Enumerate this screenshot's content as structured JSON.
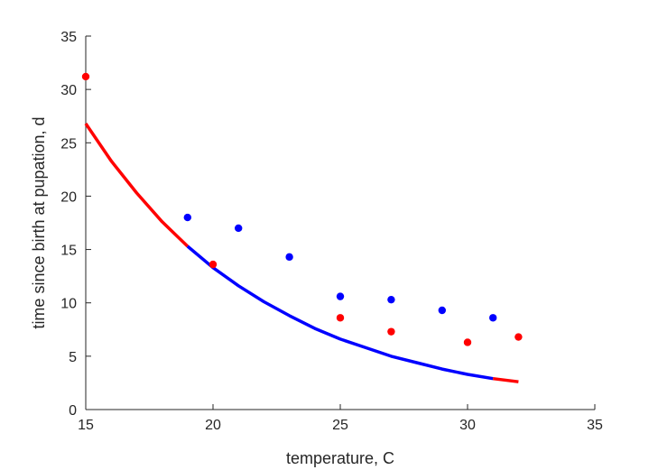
{
  "chart_data": {
    "type": "scatter",
    "xlabel": "temperature, C",
    "ylabel": "time since birth at pupation, d",
    "xlim": [
      15,
      35
    ],
    "ylim": [
      0,
      35
    ],
    "xticks": [
      15,
      20,
      25,
      30,
      35
    ],
    "yticks": [
      0,
      5,
      10,
      15,
      20,
      25,
      30,
      35
    ],
    "grid": false,
    "box": false,
    "colors": {
      "red": "#ff0000",
      "blue": "#0000ff",
      "axis": "#262626"
    },
    "series": [
      {
        "color": "#ff0000",
        "markers": true,
        "points": [
          [
            15,
            31.2
          ],
          [
            20,
            13.6
          ],
          [
            25,
            8.6
          ],
          [
            27,
            7.3
          ],
          [
            30,
            6.3
          ],
          [
            32,
            6.8
          ]
        ]
      },
      {
        "color": "#0000ff",
        "markers": true,
        "points": [
          [
            19,
            18.0
          ],
          [
            21,
            17.0
          ],
          [
            23,
            14.3
          ],
          [
            25,
            10.6
          ],
          [
            27,
            10.3
          ],
          [
            29,
            9.3
          ],
          [
            31,
            8.6
          ]
        ]
      }
    ],
    "fit_curve": {
      "x": [
        15,
        16,
        17,
        18,
        19,
        20,
        21,
        22,
        23,
        24,
        25,
        26,
        27,
        28,
        29,
        30,
        31,
        32
      ],
      "y": [
        26.8,
        23.3,
        20.3,
        17.6,
        15.3,
        13.3,
        11.6,
        10.1,
        8.8,
        7.6,
        6.6,
        5.8,
        5.0,
        4.4,
        3.8,
        3.3,
        2.9,
        2.6
      ],
      "segments": [
        {
          "from": 15,
          "to": 19,
          "color": "#ff0000"
        },
        {
          "from": 19,
          "to": 31,
          "color": "#0000ff"
        },
        {
          "from": 31,
          "to": 32,
          "color": "#ff0000"
        }
      ]
    }
  }
}
